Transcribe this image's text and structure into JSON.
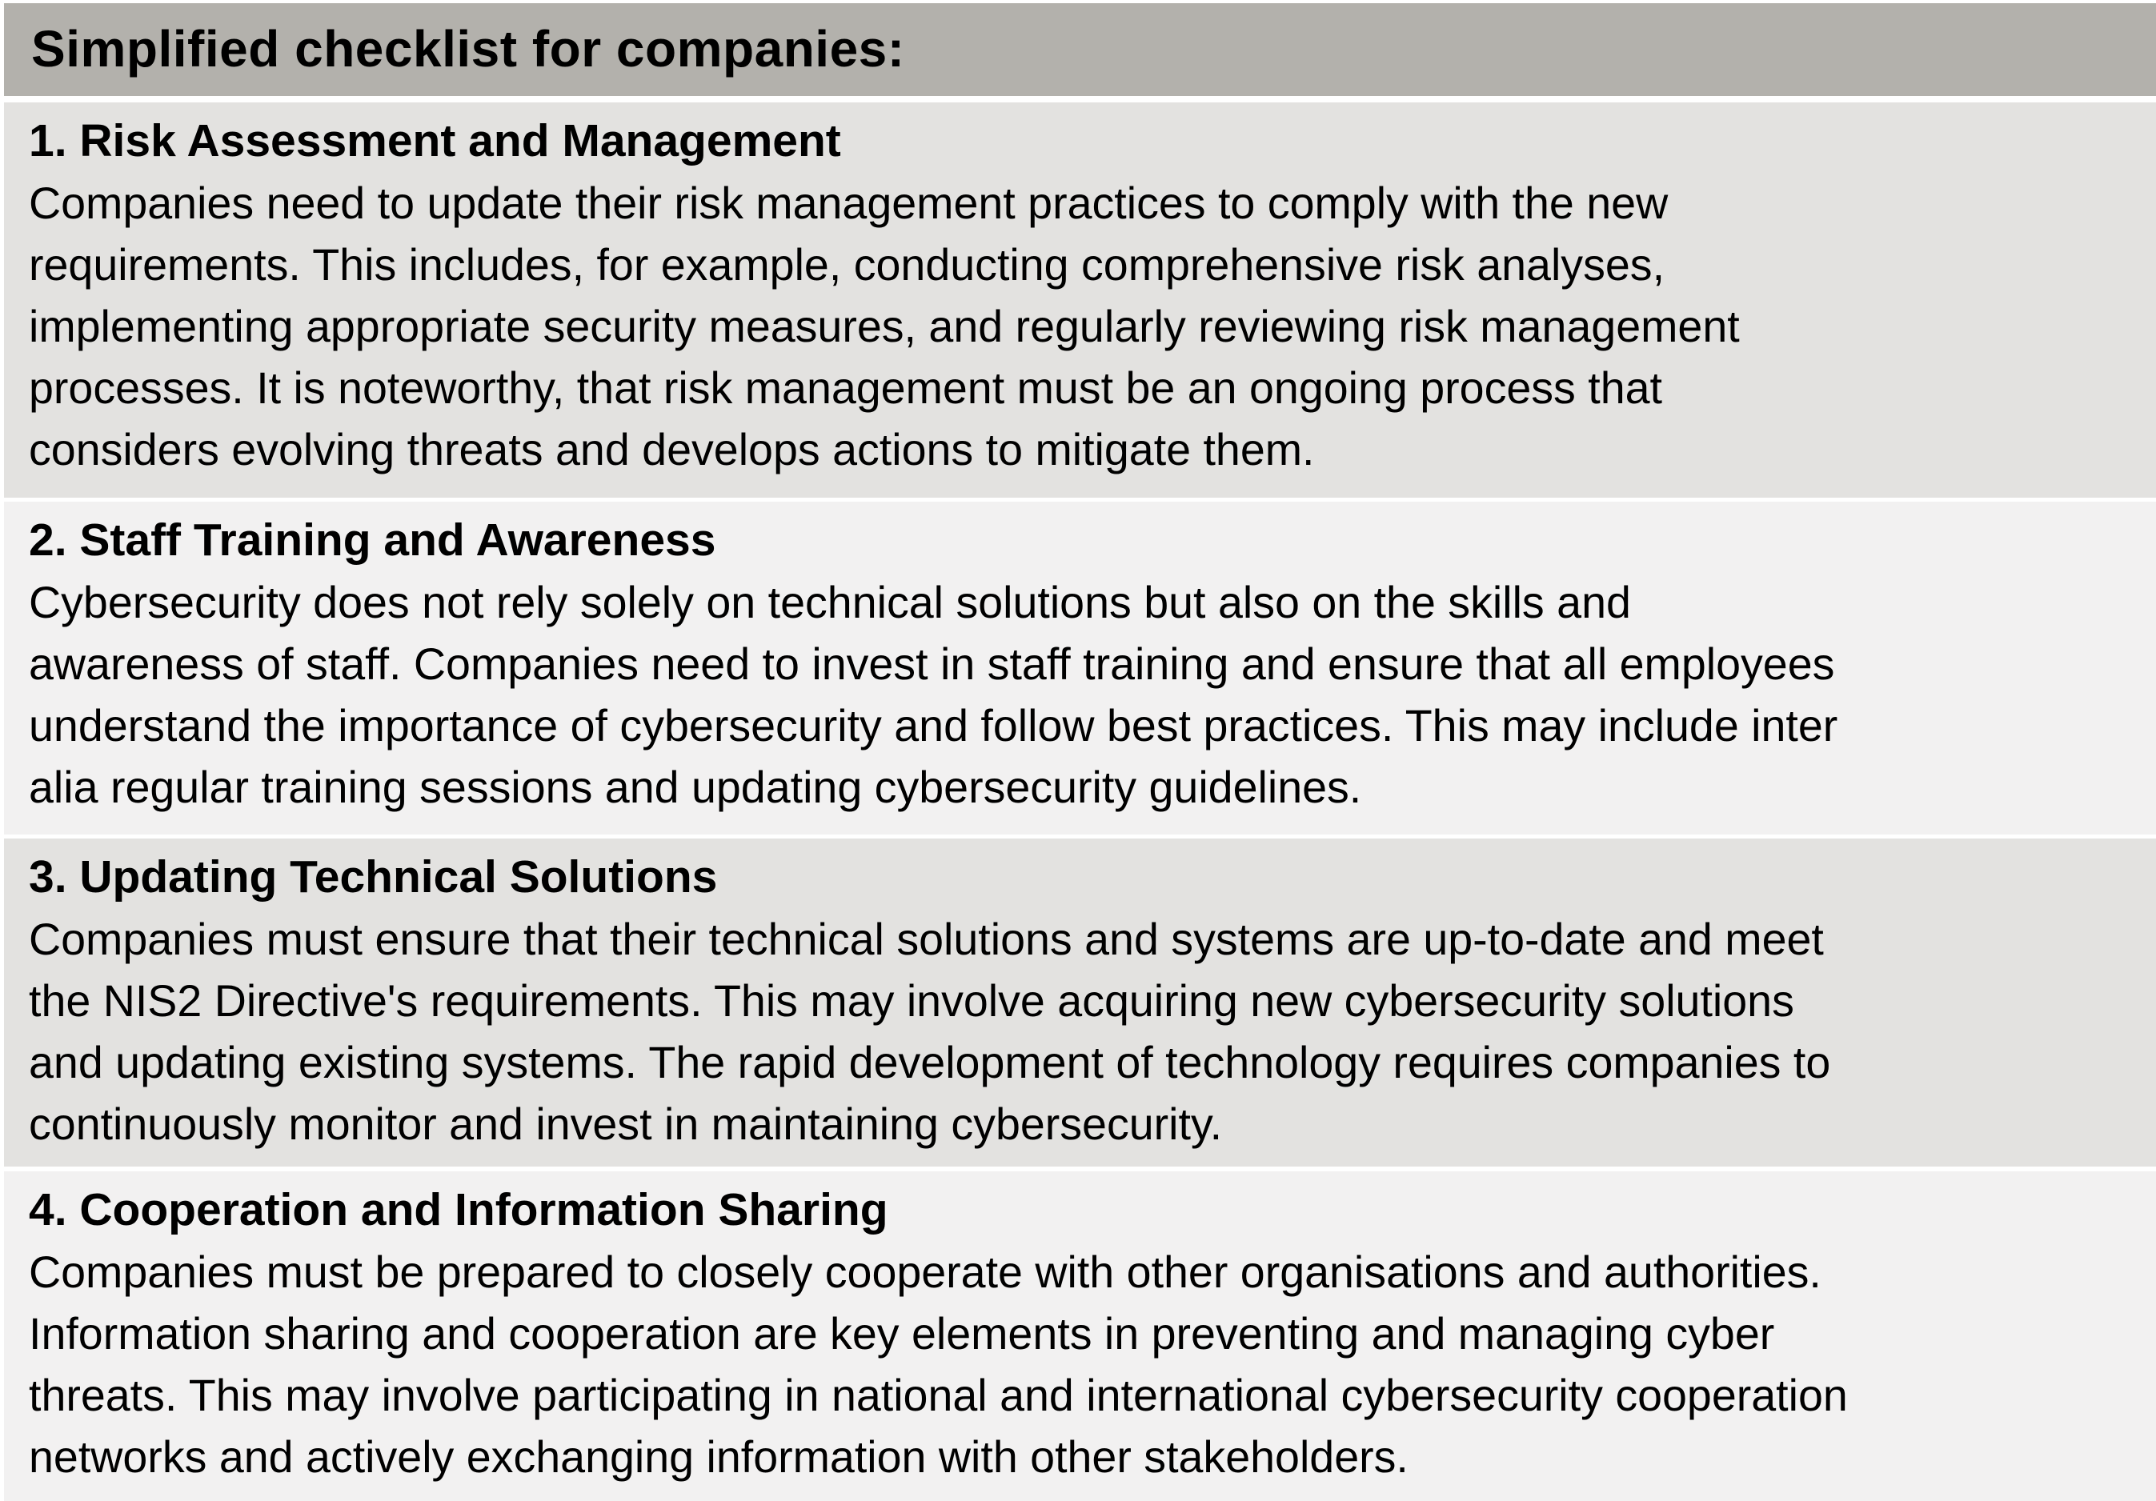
{
  "title": "Simplified checklist for companies:",
  "sections": [
    {
      "heading": "1. Risk Assessment and Management",
      "lines": [
        "Companies need to update their risk management practices to comply with the new",
        "requirements. This includes, for example, conducting comprehensive risk analyses,",
        "implementing appropriate security measures, and regularly reviewing risk management",
        "processes. It is noteworthy, that risk management must be an ongoing process that",
        "considers evolving threats and develops actions to mitigate them."
      ]
    },
    {
      "heading": "2. Staff Training and Awareness",
      "lines": [
        "Cybersecurity does not rely solely on technical solutions but also on the skills and",
        "awareness of staff. Companies need to invest in staff training and ensure that all employees",
        "understand the importance of cybersecurity and follow best practices. This may include inter",
        "alia regular training sessions and updating cybersecurity guidelines."
      ]
    },
    {
      "heading": "3. Updating Technical Solutions",
      "lines": [
        "Companies must ensure that their technical solutions and systems are up-to-date and meet",
        "the NIS2 Directive's requirements. This may involve acquiring new cybersecurity solutions",
        "and updating existing systems. The rapid development of technology requires companies to",
        "continuously monitor and invest in maintaining cybersecurity."
      ]
    },
    {
      "heading": "4. Cooperation and Information Sharing",
      "lines": [
        "Companies must be prepared to closely cooperate with other organisations and authorities.",
        "Information sharing and cooperation are key elements in preventing and managing cyber",
        "threats. This may involve participating in national and international cybersecurity cooperation",
        "networks and actively exchanging information with other stakeholders."
      ]
    }
  ],
  "colors": {
    "header_bg": "#b3b1ac",
    "row_dark": "#e3e2e0",
    "row_light": "#f2f1f1"
  }
}
